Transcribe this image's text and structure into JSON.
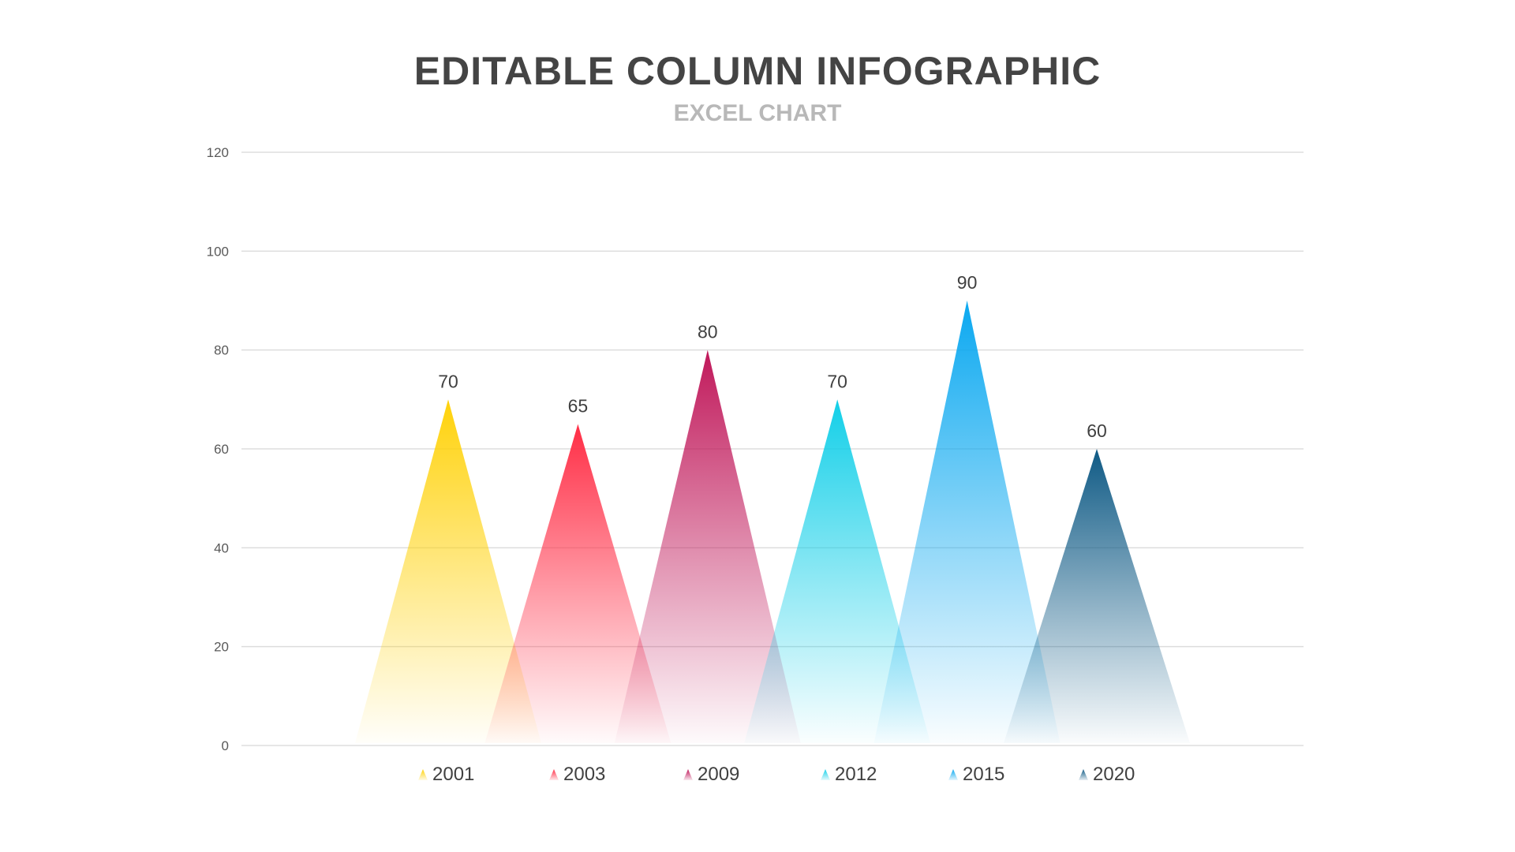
{
  "header": {
    "title": "EDITABLE COLUMN INFOGRAPHIC",
    "subtitle": "EXCEL CHART"
  },
  "colors": {
    "title": "#444444",
    "subtitle": "#b8b8b8",
    "gridline": "#dddddd",
    "tick_label": "#595959",
    "value_label": "#404040"
  },
  "legend": {
    "items": [
      {
        "label": "2001",
        "icon": "triangle-icon",
        "color": "#ffd20a"
      },
      {
        "label": "2003",
        "icon": "triangle-icon",
        "color": "#ff2d45"
      },
      {
        "label": "2009",
        "icon": "triangle-icon",
        "color": "#c0185a"
      },
      {
        "label": "2012",
        "icon": "triangle-icon",
        "color": "#12cfe8"
      },
      {
        "label": "2015",
        "icon": "triangle-icon",
        "color": "#0aa8f0"
      },
      {
        "label": "2020",
        "icon": "triangle-icon",
        "color": "#0f5a85"
      }
    ]
  },
  "chart_data": {
    "type": "bar",
    "title": "EDITABLE COLUMN INFOGRAPHIC",
    "subtitle": "EXCEL CHART",
    "xlabel": "",
    "ylabel": "",
    "bar_shape": "triangle",
    "categories": [
      "2001",
      "2003",
      "2009",
      "2012",
      "2015",
      "2020"
    ],
    "values": [
      70,
      65,
      80,
      70,
      90,
      60
    ],
    "series": [
      {
        "name": "2001",
        "values": [
          70
        ],
        "color": "#ffd20a"
      },
      {
        "name": "2003",
        "values": [
          65
        ],
        "color": "#ff2d45"
      },
      {
        "name": "2009",
        "values": [
          80
        ],
        "color": "#c0185a"
      },
      {
        "name": "2012",
        "values": [
          70
        ],
        "color": "#12cfe8"
      },
      {
        "name": "2015",
        "values": [
          90
        ],
        "color": "#0aa8f0"
      },
      {
        "name": "2020",
        "values": [
          60
        ],
        "color": "#0f5a85"
      }
    ],
    "data_labels": [
      "70",
      "65",
      "80",
      "70",
      "90",
      "60"
    ],
    "ylim": [
      0,
      120
    ],
    "yticks": [
      0,
      20,
      40,
      60,
      80,
      100,
      120
    ],
    "ytick_labels": [
      "0",
      "20",
      "40",
      "60",
      "80",
      "100",
      "120"
    ],
    "grid": true,
    "legend_position": "bottom"
  }
}
